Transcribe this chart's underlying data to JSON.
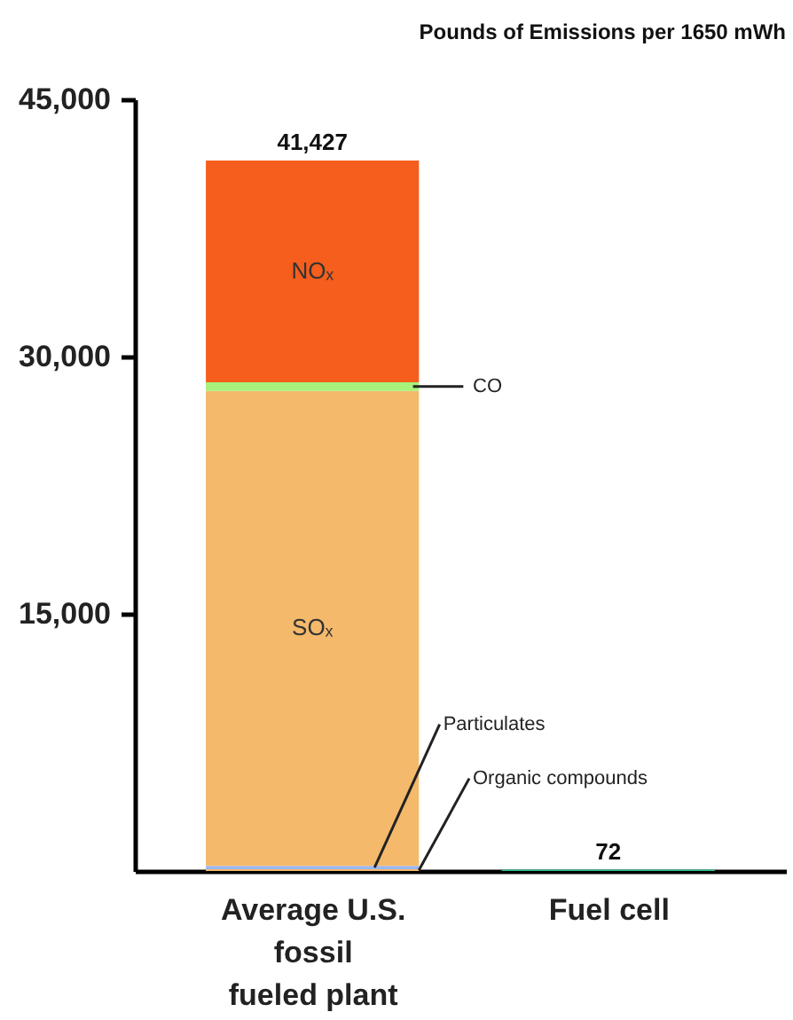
{
  "chart_data": {
    "type": "bar",
    "title": "Pounds of Emissions per 1650 mWh",
    "categories": [
      "Average U.S. fossil fueled plant",
      "Fuel cell"
    ],
    "stacked": true,
    "series": [
      {
        "name": "Organic compounds",
        "color": "#f2b96a",
        "values": [
          100,
          null
        ]
      },
      {
        "name": "Particulates",
        "color": "#9bb8f0",
        "values": [
          200,
          null
        ]
      },
      {
        "name": "SOₓ",
        "color": "#f4b96b",
        "values": [
          27700,
          null
        ]
      },
      {
        "name": "CO",
        "color": "#a6f27a",
        "values": [
          500,
          null
        ]
      },
      {
        "name": "NOₓ",
        "color": "#f55e1c",
        "values": [
          12927,
          null
        ]
      },
      {
        "color": "#2bbf8e",
        "values": [
          null,
          72
        ]
      }
    ],
    "totals": [
      "41,427",
      "72"
    ],
    "ylim": [
      0,
      45000
    ],
    "yticks": [
      {
        "value": 15000,
        "label": "15,000"
      },
      {
        "value": 30000,
        "label": "30,000"
      },
      {
        "value": 45000,
        "label": "45,000"
      }
    ],
    "grid": false
  }
}
